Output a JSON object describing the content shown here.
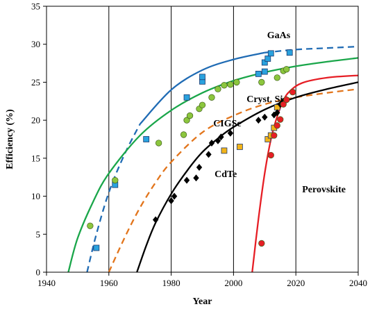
{
  "chart_data": {
    "type": "scatter",
    "xlabel": "Year",
    "ylabel": "Efficiency  (%)",
    "xlim": [
      1940,
      2040
    ],
    "ylim": [
      0,
      35
    ],
    "xticks": [
      1940,
      1960,
      1980,
      2000,
      2020,
      2040
    ],
    "yticks": [
      0,
      5,
      10,
      15,
      20,
      25,
      30,
      35
    ],
    "grid": "vertical",
    "series": [
      {
        "name": "GaAs",
        "marker": "square",
        "color": "#2aa2de",
        "points": [
          [
            1956,
            3.2
          ],
          [
            1962,
            11.5
          ],
          [
            1972,
            17.5
          ],
          [
            1985,
            23
          ],
          [
            1990,
            25.1
          ],
          [
            1990,
            25.7
          ],
          [
            2008,
            26.1
          ],
          [
            2010,
            26.4
          ],
          [
            2010,
            27.6
          ],
          [
            2011,
            28.1
          ],
          [
            2012,
            28.8
          ],
          [
            2018,
            28.9
          ]
        ],
        "fit": {
          "color": "#1f6bb4",
          "points": [
            [
              1953,
              0
            ],
            [
              1956,
              5
            ],
            [
              1960,
              10.5
            ],
            [
              1965,
              15.5
            ],
            [
              1970,
              19.5
            ],
            [
              1980,
              24
            ],
            [
              1990,
              26.6
            ],
            [
              2000,
              28
            ],
            [
              2010,
              28.9
            ],
            [
              2020,
              29.3
            ],
            [
              2030,
              29.5
            ],
            [
              2040,
              29.7
            ]
          ]
        }
      },
      {
        "name": "Cryst. Si",
        "marker": "circle",
        "color": "#8cc63e",
        "points": [
          [
            1954,
            6.1
          ],
          [
            1962,
            12.1
          ],
          [
            1976,
            17
          ],
          [
            1984,
            18.1
          ],
          [
            1985,
            20
          ],
          [
            1986,
            20.6
          ],
          [
            1989,
            21.5
          ],
          [
            1990,
            22
          ],
          [
            1993,
            23
          ],
          [
            1995,
            24.1
          ],
          [
            1997,
            24.6
          ],
          [
            1999,
            24.7
          ],
          [
            2001,
            25
          ],
          [
            2009,
            25
          ],
          [
            2014,
            25.6
          ],
          [
            2016,
            26.5
          ],
          [
            2017,
            26.7
          ]
        ],
        "fit": {
          "color": "#1aa64a",
          "points": [
            [
              1947,
              0
            ],
            [
              1950,
              4.5
            ],
            [
              1955,
              9.3
            ],
            [
              1960,
              13
            ],
            [
              1970,
              18
            ],
            [
              1980,
              21.3
            ],
            [
              1990,
              23.6
            ],
            [
              2000,
              25.2
            ],
            [
              2010,
              26.3
            ],
            [
              2020,
              27.1
            ],
            [
              2030,
              27.7
            ],
            [
              2040,
              28.2
            ]
          ]
        }
      },
      {
        "name": "CIGSe",
        "marker": "square",
        "color": "#f2b319",
        "points": [
          [
            1997,
            16
          ],
          [
            2002,
            16.5
          ],
          [
            2011,
            17.5
          ],
          [
            2012,
            18
          ],
          [
            2013,
            19
          ],
          [
            2014,
            21.7
          ]
        ],
        "fit": {
          "color": "#e2751c",
          "points": [
            [
              1960,
              0
            ],
            [
              1965,
              4.5
            ],
            [
              1970,
              8.5
            ],
            [
              1975,
              11.8
            ],
            [
              1980,
              14.5
            ],
            [
              1990,
              18.4
            ],
            [
              2000,
              20.6
            ],
            [
              2010,
              22.1
            ],
            [
              2020,
              23
            ],
            [
              2030,
              23.6
            ],
            [
              2040,
              24.1
            ]
          ]
        }
      },
      {
        "name": "CdTe",
        "marker": "diamond",
        "color": "#000000",
        "points": [
          [
            1975,
            6.9
          ],
          [
            1980,
            9.4
          ],
          [
            1981,
            10
          ],
          [
            1985,
            12.1
          ],
          [
            1988,
            12.4
          ],
          [
            1989,
            13.8
          ],
          [
            1992,
            15.5
          ],
          [
            1993,
            17
          ],
          [
            1995,
            17.3
          ],
          [
            1996,
            17.8
          ],
          [
            1999,
            18.3
          ],
          [
            2008,
            20
          ],
          [
            2010,
            20.4
          ],
          [
            2013,
            20.7
          ],
          [
            2014,
            21
          ],
          [
            2015,
            22.1
          ],
          [
            2016,
            22.5
          ],
          [
            2017,
            22.7
          ]
        ],
        "fit": {
          "color": "#000000",
          "points": [
            [
              1969,
              0
            ],
            [
              1972,
              3.5
            ],
            [
              1975,
              6.5
            ],
            [
              1980,
              10.3
            ],
            [
              1985,
              13.3
            ],
            [
              1990,
              15.8
            ],
            [
              1995,
              17.6
            ],
            [
              2000,
              19.1
            ],
            [
              2010,
              21.4
            ],
            [
              2020,
              23
            ],
            [
              2030,
              24.1
            ],
            [
              2040,
              25
            ]
          ]
        }
      },
      {
        "name": "Perovskite",
        "marker": "circle",
        "color": "#e61e25",
        "points": [
          [
            2009,
            3.8
          ],
          [
            2012,
            15.4
          ],
          [
            2013,
            18
          ],
          [
            2014,
            19.3
          ],
          [
            2015,
            20.1
          ],
          [
            2016,
            22.1
          ],
          [
            2017,
            22.7
          ],
          [
            2019,
            23.7
          ]
        ],
        "fit": {
          "color": "#e61e25",
          "points": [
            [
              2006,
              0
            ],
            [
              2008,
              7
            ],
            [
              2010,
              13
            ],
            [
              2012,
              17.5
            ],
            [
              2014,
              20.5
            ],
            [
              2016,
              22.6
            ],
            [
              2018,
              23.8
            ],
            [
              2022,
              24.9
            ],
            [
              2030,
              25.6
            ],
            [
              2040,
              25.9
            ]
          ]
        }
      }
    ],
    "labels": [
      {
        "text": "GaAs",
        "x": 2014.5,
        "y": 30.8
      },
      {
        "text": "Cryst. Si",
        "x": 2010,
        "y": 22.4
      },
      {
        "text": "CIGSe",
        "x": 1998,
        "y": 19.2
      },
      {
        "text": "CdTe",
        "x": 1997.5,
        "y": 12.5
      },
      {
        "text": "Perovskite",
        "x": 2029,
        "y": 10.5
      }
    ]
  }
}
